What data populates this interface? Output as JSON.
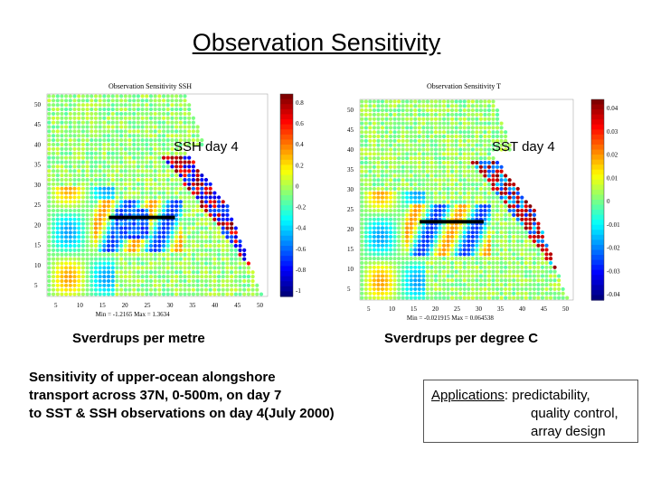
{
  "slide": {
    "title": "Observation Sensitivity"
  },
  "panels": [
    {
      "id": "ssh",
      "small_title": "Observation Sensitivity SSH",
      "label": "SSH day 4",
      "unit_label": "Sverdrups per metre",
      "minmax": "Min = -1.2165 Max = 1.3634",
      "colorbar_ticks": [
        "0.8",
        "0.6",
        "0.4",
        "0.2",
        "0",
        "-0.2",
        "-0.4",
        "-0.6",
        "-0.8",
        "-1"
      ],
      "y_ticks": [
        "50",
        "45",
        "40",
        "35",
        "30",
        "25",
        "20",
        "15",
        "10",
        "5"
      ],
      "x_ticks": [
        "5",
        "10",
        "15",
        "20",
        "25",
        "30",
        "35",
        "40",
        "45",
        "50"
      ]
    },
    {
      "id": "sst",
      "small_title": "Observation Sensitivity T",
      "label": "SST day 4",
      "unit_label": "Sverdrups per degree C",
      "minmax": "Min = -0.021915 Max = 0.064538",
      "colorbar_ticks": [
        "0.04",
        "0.03",
        "0.02",
        "0.01",
        "0",
        "-0.01",
        "-0.02",
        "-0.03",
        "-0.04"
      ],
      "y_ticks": [
        "50",
        "45",
        "40",
        "35",
        "30",
        "25",
        "20",
        "15",
        "10",
        "5"
      ],
      "x_ticks": [
        "5",
        "10",
        "15",
        "20",
        "25",
        "30",
        "35",
        "40",
        "45",
        "50"
      ]
    }
  ],
  "caption": {
    "line1": "Sensitivity of upper-ocean alongshore",
    "line2": "transport across 37N, 0-500m, on day 7",
    "line3": "to SST & SSH observations on day 4(July 2000)"
  },
  "applications": {
    "heading": "Applications",
    "line1_rest": ": predictability,",
    "line2": "quality control,",
    "line3": "array design"
  }
}
